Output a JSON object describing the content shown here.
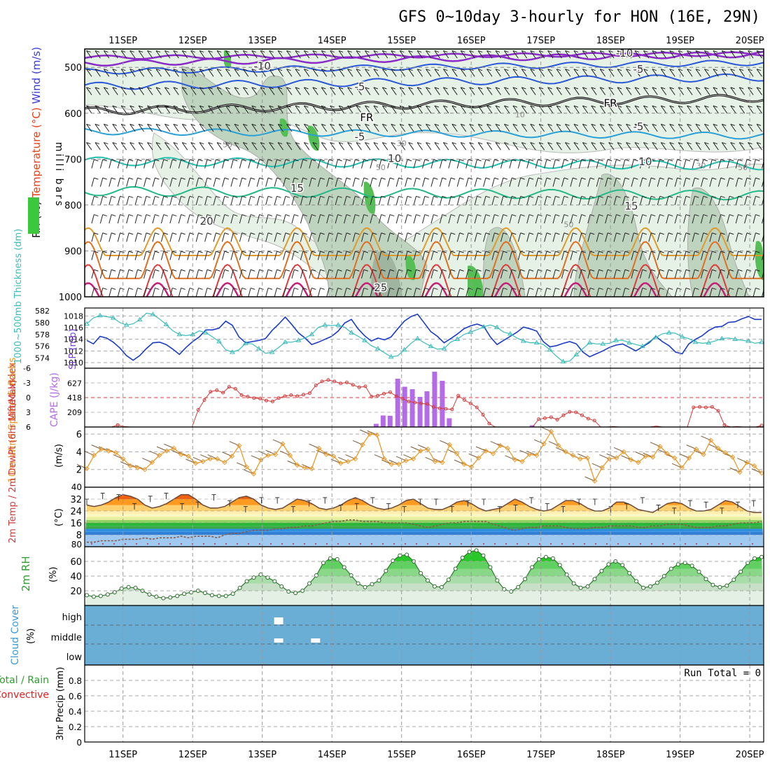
{
  "title": "GFS 0~10day 3-hourly for HON (16E, 29N)",
  "colors": {
    "temperature": "#e8421c",
    "rh": "#3cb43c",
    "cape": "#b36be8",
    "lifted": "#d23c3c",
    "slp": "#1a3cc8",
    "thickness": "#3cbcbc",
    "wind10m": "#e89a2a",
    "cloud": "#6aaed6",
    "convective": "#e02020",
    "rain2m": "#2ca02c"
  },
  "chart_data": [
    {
      "type": "line",
      "name": "upper-air",
      "ylabel_parts": [
        "RH (%)",
        "Temperature (°C)",
        "Wind (m/s)"
      ],
      "y_axis_label": "milli bars",
      "ylim": [
        1000,
        460
      ],
      "y_ticks": [
        500,
        600,
        700,
        800,
        900,
        1000
      ],
      "x_labels": [
        "11SEP",
        "12SEP",
        "13SEP",
        "14SEP",
        "15SEP",
        "16SEP",
        "17SEP",
        "18SEP",
        "19SEP",
        "20SEP"
      ],
      "freezing_label": "FR",
      "isotherm_labels": [
        {
          "text": "-10",
          "day": 2.0,
          "p": 505
        },
        {
          "text": "-10",
          "day": 7.2,
          "p": 477
        },
        {
          "text": "-5",
          "day": 3.4,
          "p": 550
        },
        {
          "text": "-5",
          "day": 7.4,
          "p": 512
        },
        {
          "text": "FR",
          "day": 3.5,
          "p": 617
        },
        {
          "text": "FR",
          "day": 7.0,
          "p": 586
        },
        {
          "text": "-5",
          "day": 3.4,
          "p": 659
        },
        {
          "text": "-5",
          "day": 7.4,
          "p": 637
        },
        {
          "text": "10",
          "day": 3.9,
          "p": 706
        },
        {
          "text": "10",
          "day": 7.5,
          "p": 713
        },
        {
          "text": "15",
          "day": 2.5,
          "p": 771
        },
        {
          "text": "15",
          "day": 7.3,
          "p": 810
        },
        {
          "text": "20",
          "day": 1.2,
          "p": 843
        },
        {
          "text": "25",
          "day": 3.7,
          "p": 988
        }
      ],
      "rh_labels": [
        {
          "text": "50",
          "day": 1.5,
          "p": 674
        },
        {
          "text": "30",
          "day": 4.0,
          "p": 671
        },
        {
          "text": "50",
          "day": 3.7,
          "p": 724
        },
        {
          "text": "10",
          "day": 5.7,
          "p": 609
        },
        {
          "text": "30",
          "day": 8.3,
          "p": 720
        },
        {
          "text": "50",
          "day": 8.9,
          "p": 724
        },
        {
          "text": "50",
          "day": 6.4,
          "p": 848
        }
      ]
    },
    {
      "type": "line",
      "name": "thickness-slp",
      "ylabel_left": "1000~500mb Thickness (dm)",
      "ylabel_right": "SLP (mb)",
      "left_ticks": [
        574,
        576,
        578,
        580,
        582
      ],
      "right_ticks": [
        1010,
        1012,
        1014,
        1016,
        1018
      ],
      "series": [
        {
          "name": "SLP",
          "values": [
            1013.8,
            1013.2,
            1014.5,
            1014.2,
            1013.5,
            1012.5,
            1011.2,
            1010.4,
            1011.2,
            1012.4,
            1013.4,
            1013.5,
            1013.1,
            1012.3,
            1011.4,
            1012.6,
            1013.6,
            1014.4,
            1015.6,
            1015.6,
            1015.9,
            1017.1,
            1016.4,
            1014.4,
            1013.4,
            1013.6,
            1013.8,
            1014.1,
            1015.5,
            1016.6,
            1017.8,
            1016.5,
            1015.1,
            1014.2,
            1013.1,
            1013.5,
            1014.0,
            1014.5,
            1015.4,
            1016.8,
            1017.4,
            1015.8,
            1014.6,
            1013.7,
            1014.2,
            1013.9,
            1014.4,
            1015.8,
            1017.1,
            1017.9,
            1018.3,
            1016.8,
            1015.3,
            1014.5,
            1013.4,
            1014.1,
            1014.9,
            1015.8,
            1016.3,
            1016.6,
            1016.2,
            1014.4,
            1013.1,
            1013.8,
            1014.5,
            1015.2,
            1016.1,
            1015.8,
            1015.4,
            1013.6,
            1012.7,
            1012.9,
            1013.3,
            1013.6,
            1013.2,
            1011.8,
            1011.0,
            1011.5,
            1012.0,
            1012.6,
            1013.0,
            1013.2,
            1012.6,
            1012.0,
            1012.7,
            1013.4,
            1014.5,
            1013.6,
            1012.9,
            1011.8,
            1011.5,
            1013.2,
            1014.0,
            1014.6,
            1015.5,
            1016.1,
            1016.2,
            1016.9,
            1017.0,
            1017.5,
            1017.9,
            1017.4,
            1017.4
          ]
        },
        {
          "name": "Thickness",
          "values": [
            579.8,
            580.8,
            581.2,
            581.0,
            580.8,
            580.0,
            579.6,
            579.8,
            580.5,
            581.6,
            581.4,
            580.6,
            579.7,
            578.6,
            578.0,
            577.8,
            578.0,
            578.6,
            578.3,
            577.6,
            576.8,
            575.4,
            575.0,
            575.4,
            576.5,
            576.4,
            575.6,
            574.8,
            575.0,
            575.8,
            576.7,
            576.7,
            577.0,
            577.4,
            578.0,
            579.2,
            579.6,
            579.5,
            579.6,
            579.2,
            578.3,
            577.7,
            577.0,
            576.1,
            575.6,
            574.9,
            574.2,
            574.4,
            575.4,
            576.5,
            577.3,
            576.6,
            576.0,
            575.5,
            575.6,
            576.7,
            577.2,
            578.0,
            578.4,
            578.8,
            579.3,
            579.6,
            579.2,
            578.4,
            578.1,
            577.4,
            576.9,
            576.6,
            576.6,
            576.3,
            575.4,
            574.3,
            573.4,
            573.5,
            574.6,
            575.6,
            576.6,
            576.4,
            576.4,
            576.5,
            577.0,
            577.0,
            576.6,
            576.3,
            576.0,
            576.8,
            577.5,
            578.1,
            578.3,
            578.2,
            577.6,
            577.3,
            576.7,
            576.5,
            576.6,
            576.9,
            577.3,
            577.4,
            577.2,
            577.0,
            576.9,
            576.5,
            576.7
          ]
        }
      ]
    },
    {
      "type": "bar",
      "name": "cape-lifted-index",
      "ylabel_left": "Lifted Index",
      "ylabel_right": "CAPE (J/kg)",
      "left_ticks": [
        -6,
        -3,
        0,
        3,
        6
      ],
      "right_ticks": [
        209,
        418,
        627
      ],
      "cape_values": [
        0,
        0,
        0,
        0,
        0,
        0,
        0,
        0,
        0,
        0,
        0,
        0,
        0,
        0,
        0,
        0,
        0,
        0,
        0,
        0,
        0,
        0,
        0,
        0,
        0,
        0,
        0,
        0,
        0,
        0,
        0,
        0,
        0,
        0,
        0,
        0,
        0,
        0,
        0,
        0,
        0,
        0,
        0,
        0,
        0,
        0,
        0,
        0,
        0,
        0,
        0,
        0,
        0,
        0,
        0,
        0,
        0,
        0,
        0,
        0,
        0,
        0,
        0,
        0,
        0,
        0,
        0,
        0,
        0,
        0,
        0,
        0,
        0,
        0,
        0,
        0,
        0,
        0,
        0,
        0,
        0,
        0,
        0,
        0,
        0,
        0,
        0,
        0,
        0,
        0,
        0,
        0,
        0,
        0,
        0,
        0,
        0,
        0,
        0,
        0,
        0,
        0,
        0
      ],
      "cape_bars": [
        {
          "day": 3.63,
          "value": 45
        },
        {
          "day": 3.73,
          "value": 165
        },
        {
          "day": 3.83,
          "value": 160
        },
        {
          "day": 3.94,
          "value": 690
        },
        {
          "day": 4.04,
          "value": 575
        },
        {
          "day": 4.15,
          "value": 540
        },
        {
          "day": 4.26,
          "value": 430
        },
        {
          "day": 4.36,
          "value": 510
        },
        {
          "day": 4.47,
          "value": 790
        },
        {
          "day": 4.58,
          "value": 660
        },
        {
          "day": 4.68,
          "value": 125
        },
        {
          "day": 5.87,
          "value": 25
        }
      ],
      "lifted_values": [
        6,
        6,
        6,
        6,
        6,
        5.6,
        5.9,
        6,
        6,
        6,
        6,
        6,
        6,
        6,
        6,
        6,
        6,
        6,
        2.5,
        0.5,
        -1.2,
        -1.5,
        -1.0,
        -2.2,
        -1.8,
        -0.5,
        -0.2,
        0.1,
        0.2,
        0.6,
        0.8,
        0.1,
        -0.3,
        -0.5,
        -0.3,
        -0.6,
        -0.9,
        -2.5,
        -3.3,
        -3.6,
        -3.3,
        -2.9,
        -3.1,
        -2.6,
        -2.1,
        -2.3,
        -0.2,
        -0.4,
        -0.8,
        -1.1,
        -0.3,
        0.2,
        0.8,
        1.0,
        1.2,
        1.3,
        1.9,
        2.2,
        2.3,
        2.4,
        -0.4,
        0.5,
        1.2,
        2.0,
        3.5,
        5.3,
        6,
        6,
        6,
        6,
        6,
        6,
        6,
        4.4,
        4.2,
        4.0,
        4.5,
        3.6,
        2.9,
        3.0,
        3.6,
        4.3,
        4.7,
        6,
        6,
        5.9,
        6,
        6,
        6,
        6,
        6,
        6,
        5.8,
        6,
        6,
        6,
        6,
        6,
        2.0,
        1.9,
        2.0,
        1.9,
        2.7,
        5.6,
        6,
        5.9,
        6,
        6,
        6,
        5.7
      ]
    },
    {
      "type": "line",
      "name": "wind-10m",
      "ylabel": "10m Wind Speed & Barbs",
      "units": "(m/s)",
      "y_ticks": [
        2,
        4,
        6
      ],
      "ylim": [
        0,
        6.8
      ],
      "values": [
        2.1,
        3.6,
        4.3,
        4.1,
        3.9,
        3.2,
        2.4,
        2.2,
        2.0,
        2.8,
        3.6,
        4.1,
        4.4,
        3.7,
        3.5,
        2.7,
        2.9,
        3.2,
        3.2,
        2.8,
        3.5,
        4.7,
        2.3,
        1.5,
        3.1,
        3.6,
        3.7,
        4.9,
        3.6,
        2.5,
        2.2,
        2.1,
        4.4,
        3.7,
        3.5,
        2.7,
        2.9,
        3.2,
        4.8,
        6.0,
        5.9,
        3.2,
        2.6,
        2.6,
        3.0,
        3.2,
        4.1,
        4.3,
        2.9,
        2.8,
        4.8,
        3.8,
        2.6,
        2.3,
        3.3,
        4.1,
        3.8,
        4.7,
        4.4,
        3.1,
        2.9,
        3.7,
        3.6,
        4.9,
        6.3,
        4.7,
        4.0,
        3.6,
        3.2,
        3.3,
        0.7,
        2.2,
        3.2,
        3.3,
        4.0,
        3.1,
        2.8,
        3.5,
        3.4,
        4.6,
        3.8,
        3.3,
        2.2,
        3.3,
        4.3,
        3.7,
        5.3,
        4.4,
        3.9,
        3.4,
        1.7,
        2.8,
        2.4,
        1.6
      ]
    },
    {
      "type": "area",
      "name": "temperature-2m",
      "ylabel": "2m Temp / 2m DewPt (6hr Min/Max)",
      "units": "(°C)",
      "y_ticks": [
        8,
        16,
        24,
        32
      ],
      "ylim": [
        0,
        40
      ],
      "temp_max": [
        32,
        33,
        36,
        37,
        35,
        30,
        29,
        31,
        34,
        37,
        36,
        32,
        29,
        28,
        30,
        33,
        35,
        34,
        31,
        28,
        27,
        30,
        33,
        34,
        33,
        29,
        27,
        28,
        31,
        33,
        33,
        30,
        28,
        27,
        29,
        31,
        33,
        32,
        29,
        27,
        27,
        29,
        32,
        33,
        32,
        29,
        27,
        28,
        31,
        32,
        32,
        29,
        27,
        26,
        28,
        31,
        33,
        32,
        29,
        27,
        27,
        29,
        32,
        33,
        32,
        29,
        27,
        26,
        29,
        32,
        33,
        31,
        28,
        26,
        26,
        28,
        31,
        31,
        30,
        28,
        26,
        27,
        30,
        32,
        31,
        28
      ],
      "temp": [
        28,
        27,
        28,
        30,
        33,
        35,
        34,
        32,
        28,
        26,
        27,
        29,
        32,
        35,
        35,
        32,
        28,
        26,
        26,
        27,
        30,
        33,
        34,
        32,
        28,
        26,
        25,
        26,
        29,
        32,
        31,
        29,
        26,
        25,
        26,
        28,
        31,
        33,
        31,
        28,
        26,
        25,
        26,
        28,
        31,
        32,
        29,
        26,
        25,
        25,
        27,
        30,
        31,
        29,
        26,
        24,
        25,
        26,
        29,
        32,
        30,
        27,
        25,
        24,
        25,
        28,
        31,
        31,
        29,
        26,
        24,
        24,
        26,
        30,
        30,
        28,
        25,
        24,
        23,
        26,
        29,
        30,
        29,
        26,
        24,
        24,
        25,
        28,
        31,
        30,
        27,
        24,
        23,
        23
      ],
      "dewpoint": [
        3,
        3,
        4,
        4,
        4,
        5,
        5,
        5,
        6,
        5,
        6,
        6,
        6,
        7,
        6,
        7,
        7,
        7,
        6,
        8,
        9,
        9,
        10,
        11,
        11,
        11,
        12,
        12,
        13,
        13,
        14,
        14,
        15,
        16,
        17,
        17,
        18,
        18,
        17,
        17,
        17,
        16,
        16,
        16,
        16,
        15,
        14,
        13,
        14,
        15,
        16,
        16,
        17,
        17,
        17,
        17,
        15,
        14,
        12,
        11,
        12,
        13,
        13,
        14,
        14,
        14,
        13,
        12,
        12,
        12,
        13,
        13,
        14,
        14,
        14,
        14,
        13,
        13,
        14,
        14,
        15,
        15,
        15,
        14,
        13,
        13,
        13,
        14,
        14,
        15,
        16,
        16,
        16,
        17
      ]
    },
    {
      "type": "area",
      "name": "rh-2m",
      "ylabel": "2m RH",
      "units": "(%)",
      "y_ticks": [
        20,
        40,
        60
      ],
      "ylim": [
        0,
        80
      ],
      "values": [
        14,
        12,
        13,
        15,
        18,
        23,
        25,
        24,
        20,
        15,
        12,
        10,
        11,
        13,
        16,
        18,
        20,
        17,
        14,
        13,
        13,
        16,
        24,
        33,
        38,
        42,
        38,
        33,
        26,
        19,
        17,
        20,
        30,
        41,
        58,
        64,
        63,
        52,
        41,
        30,
        25,
        29,
        34,
        47,
        61,
        68,
        69,
        60,
        44,
        34,
        26,
        25,
        35,
        50,
        65,
        73,
        75,
        68,
        52,
        34,
        22,
        19,
        25,
        36,
        52,
        63,
        66,
        64,
        55,
        42,
        30,
        24,
        26,
        36,
        47,
        56,
        60,
        55,
        44,
        33,
        24,
        26,
        31,
        40,
        50,
        56,
        58,
        54,
        46,
        36,
        28,
        25,
        27,
        35,
        46,
        58,
        64,
        66
      ]
    },
    {
      "type": "table",
      "name": "cloud-cover",
      "ylabel": "Cloud Cover",
      "units": "(%)",
      "levels": [
        "high",
        "middle",
        "low"
      ],
      "gaps": [
        {
          "level": "high",
          "start_day": 2.17,
          "end_day": 2.3
        },
        {
          "level": "middle",
          "start_day": 2.17,
          "end_day": 2.3
        },
        {
          "level": "middle",
          "start_day": 2.7,
          "end_day": 2.83
        }
      ]
    },
    {
      "type": "bar",
      "name": "precip",
      "ylabel": "3hr Precip (mm)",
      "legend": [
        "Total / Rain",
        "Convective"
      ],
      "run_total_label": "Run Total = 0",
      "y_ticks": [
        0,
        0.2,
        0.4,
        0.6,
        0.8
      ],
      "ylim": [
        0,
        1.0
      ],
      "x_labels": [
        "11SEP",
        "12SEP",
        "13SEP",
        "14SEP",
        "15SEP",
        "16SEP",
        "17SEP",
        "18SEP",
        "19SEP",
        "20SEP"
      ],
      "values": []
    }
  ]
}
